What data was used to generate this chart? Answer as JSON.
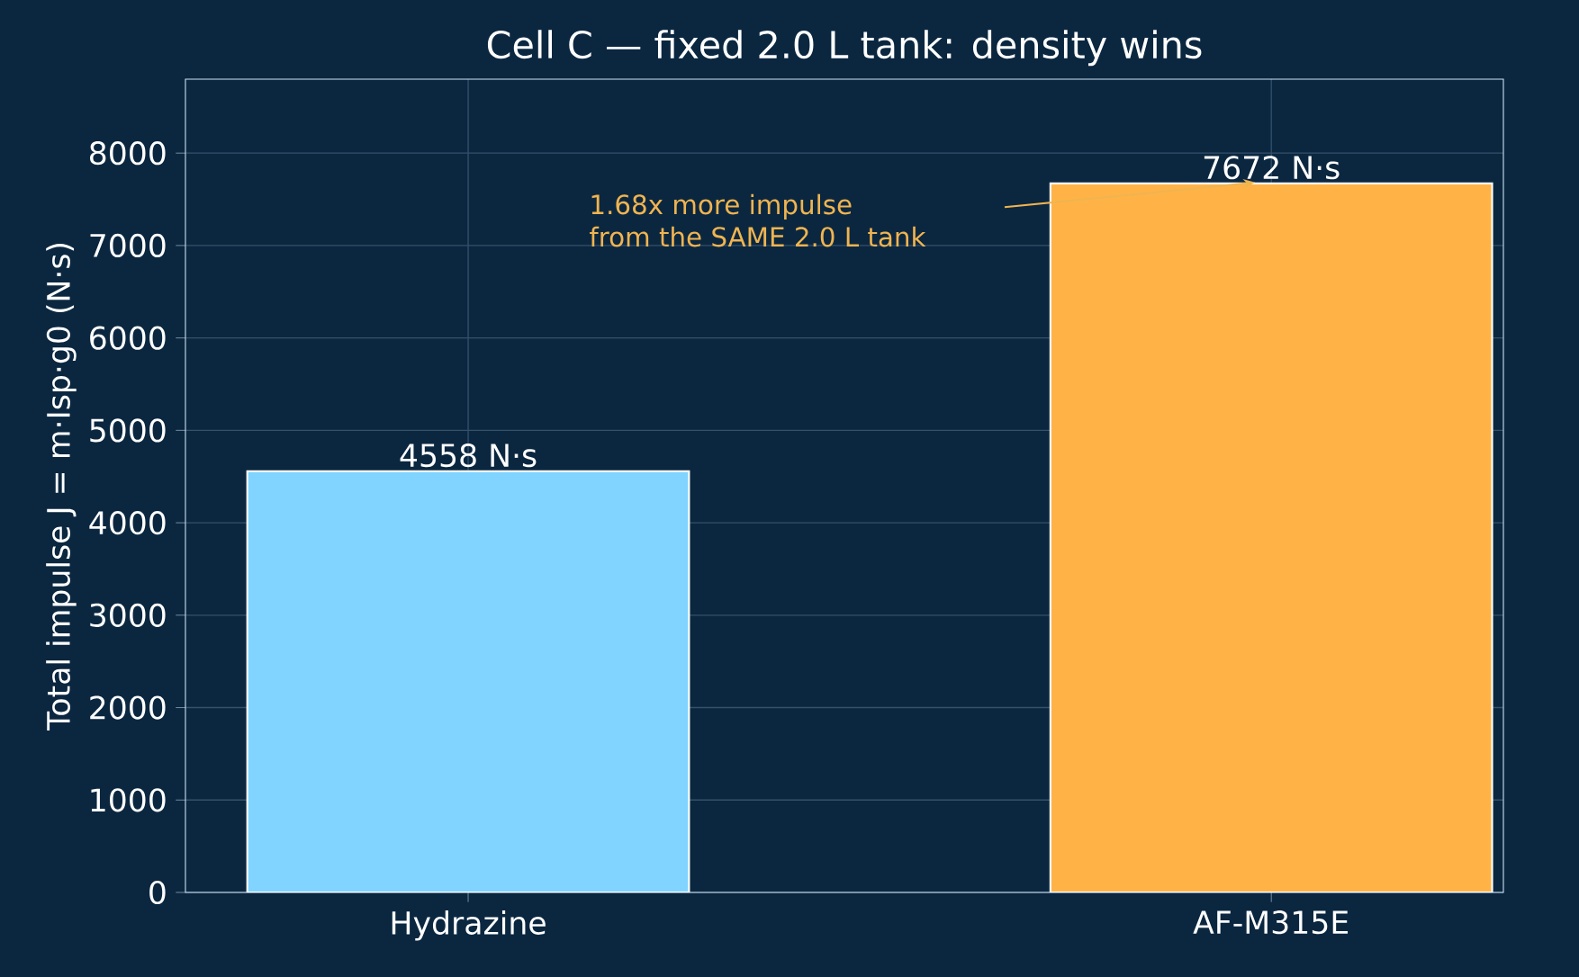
{
  "chart_data": {
    "type": "bar",
    "title": "Cell C — fixed 2.0 L tank: density wins",
    "ylabel": "Total impulse J = m·Isp·g0  (N·s)",
    "categories": [
      "Hydrazine",
      "AF-M315E"
    ],
    "values": [
      4558,
      7672
    ],
    "colors": [
      "#80d4ff",
      "#ffb347"
    ],
    "value_labels": [
      "4558 N·s",
      "7672 N·s"
    ],
    "ylim": [
      0,
      8800
    ],
    "yticks": [
      0,
      1000,
      2000,
      3000,
      4000,
      5000,
      6000,
      7000,
      8000
    ],
    "grid": true,
    "annotations": [
      "1.68x more impulse from the SAME 2.0 L tank"
    ]
  }
}
